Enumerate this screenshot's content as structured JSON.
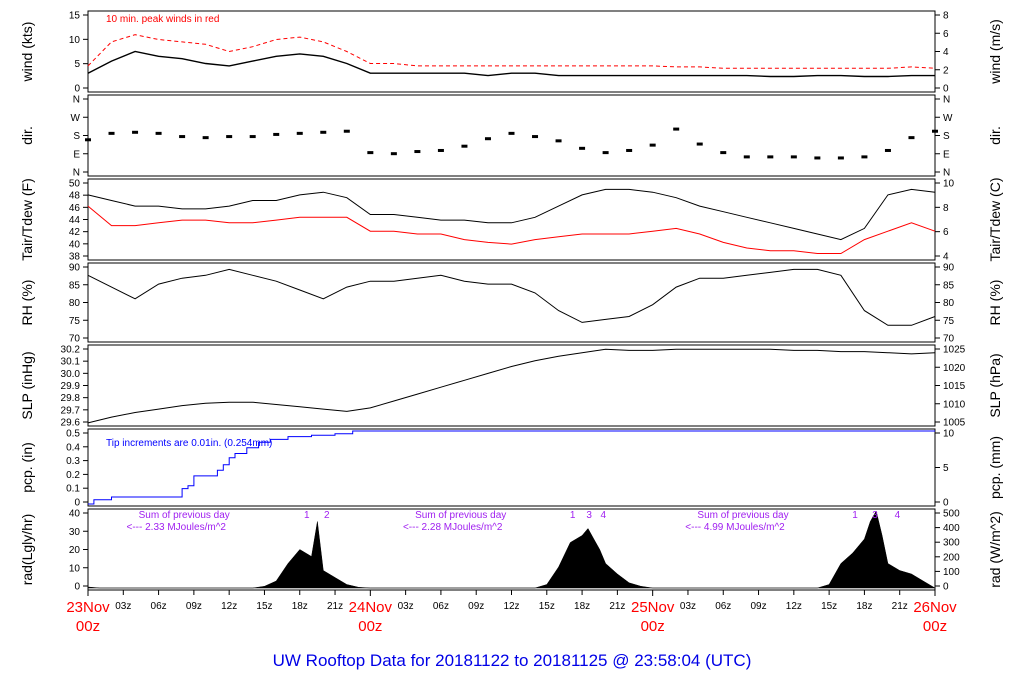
{
  "title": "UW Rooftop Data for 20181122  to  20181125 @ 23:58:04  (UTC)",
  "x_axis": {
    "hour_ticks": [
      "03z",
      "06z",
      "09z",
      "12z",
      "15z",
      "18z",
      "21z"
    ],
    "days": [
      {
        "label": "23Nov",
        "sub": "00z"
      },
      {
        "label": "24Nov",
        "sub": "00z"
      },
      {
        "label": "25Nov",
        "sub": "00z"
      },
      {
        "label": "26Nov",
        "sub": "00z"
      }
    ]
  },
  "colors": {
    "primary": "#000000",
    "gust": "#ff0000",
    "dew": "#ff0000",
    "precip": "#0000ff",
    "annotation": "#a020f0",
    "title": "#0000e6"
  },
  "chart_data": [
    {
      "type": "line",
      "id": "wind",
      "ylabel_left": "wind (kts)",
      "ylabel_right": "wind (m/s)",
      "yticks_left": [
        "0",
        "5",
        "10",
        "15"
      ],
      "yticks_right": [
        "0",
        "2",
        "4",
        "6",
        "8"
      ],
      "ylim": [
        0,
        16
      ],
      "annotation": "10 min. peak winds in red",
      "x_hours": [
        0,
        2,
        4,
        6,
        8,
        10,
        12,
        14,
        16,
        18,
        20,
        22,
        24,
        26,
        28,
        30,
        32,
        34,
        36,
        38,
        40,
        42,
        44,
        46,
        48,
        50,
        52,
        54,
        56,
        58,
        60,
        62,
        64,
        66,
        68,
        70,
        72
      ],
      "series": [
        {
          "role": "wind",
          "values": [
            3.5,
            6,
            8,
            7,
            6.5,
            5.5,
            5,
            6,
            7,
            7.5,
            7,
            5.5,
            3.5,
            3.5,
            3.5,
            3.5,
            3.5,
            3,
            3.5,
            3.5,
            3,
            3,
            3,
            3,
            3,
            3,
            3,
            3,
            3,
            2.8,
            2.8,
            3,
            3,
            2.8,
            2.8,
            3,
            3
          ]
        },
        {
          "role": "gust",
          "values": [
            5,
            10,
            11.5,
            10.5,
            10,
            9.5,
            8,
            9,
            10.5,
            11,
            10,
            8,
            5.5,
            5.5,
            5,
            5,
            5,
            5,
            5,
            5,
            5,
            5,
            5,
            5,
            5,
            4.8,
            4.8,
            4.5,
            4.5,
            4.5,
            4.5,
            4.5,
            4.5,
            4.5,
            4.5,
            4.8,
            4.5
          ]
        }
      ]
    },
    {
      "type": "scatter",
      "id": "dir",
      "ylabel_left": "dir.",
      "ylabel_right": "dir.",
      "yticks_left": [
        "N",
        "E",
        "S",
        "W",
        "N"
      ],
      "yticks_right": [
        "N",
        "E",
        "S",
        "W",
        "N"
      ],
      "ylim": [
        0,
        360
      ],
      "x_hours": [
        0,
        2,
        4,
        6,
        8,
        10,
        12,
        14,
        16,
        18,
        20,
        22,
        24,
        26,
        28,
        30,
        32,
        34,
        36,
        38,
        40,
        42,
        44,
        46,
        48,
        50,
        52,
        54,
        56,
        58,
        60,
        62,
        64,
        66,
        68,
        70,
        72
      ],
      "values": [
        160,
        190,
        195,
        190,
        175,
        170,
        175,
        175,
        185,
        190,
        195,
        200,
        100,
        95,
        105,
        110,
        130,
        165,
        190,
        175,
        155,
        120,
        100,
        110,
        135,
        210,
        140,
        100,
        80,
        80,
        80,
        75,
        75,
        80,
        110,
        170,
        200
      ]
    },
    {
      "type": "line",
      "id": "temp",
      "ylabel_left": "Tair/Tdew (F)",
      "ylabel_right": "Tair/Tdew (C)",
      "yticks_left": [
        "38",
        "40",
        "42",
        "44",
        "46",
        "48",
        "50"
      ],
      "yticks_right": [
        "4",
        "6",
        "8",
        "10"
      ],
      "ylim": [
        36.7,
        50.5
      ],
      "x_hours": [
        0,
        2,
        4,
        6,
        8,
        10,
        12,
        14,
        16,
        18,
        20,
        22,
        24,
        26,
        28,
        30,
        32,
        34,
        36,
        38,
        40,
        42,
        44,
        46,
        48,
        50,
        52,
        54,
        56,
        58,
        60,
        62,
        64,
        66,
        68,
        70,
        72
      ],
      "series": [
        {
          "role": "Tair",
          "values": [
            48,
            47,
            46,
            46,
            45.5,
            45.5,
            46,
            47,
            47,
            48,
            48.5,
            47.5,
            44.5,
            44.5,
            44,
            43.5,
            43.5,
            43,
            43,
            44,
            46,
            48,
            49,
            49,
            48.5,
            47.5,
            46,
            45,
            44,
            43,
            42,
            41,
            40,
            42,
            48,
            49,
            48.5
          ]
        },
        {
          "role": "Tdew",
          "values": [
            46,
            42.5,
            42.5,
            43,
            43.5,
            43.5,
            43,
            43,
            43.5,
            44,
            44,
            44,
            41.5,
            41.5,
            41,
            41,
            40,
            39.5,
            39.2,
            40,
            40.5,
            41,
            41,
            41,
            41.5,
            42,
            41,
            39.5,
            38.5,
            38,
            38,
            37.5,
            37.5,
            40,
            41.5,
            43,
            41.5
          ]
        }
      ]
    },
    {
      "type": "line",
      "id": "rh",
      "ylabel_left": "RH (%)",
      "ylabel_right": "RH (%)",
      "yticks_left": [
        "70",
        "75",
        "80",
        "85",
        "90"
      ],
      "yticks_right": [
        "70",
        "75",
        "80",
        "85",
        "90"
      ],
      "ylim": [
        68,
        93.5
      ],
      "x_hours": [
        0,
        2,
        4,
        6,
        8,
        10,
        12,
        14,
        16,
        18,
        20,
        22,
        24,
        26,
        28,
        30,
        32,
        34,
        36,
        38,
        40,
        42,
        44,
        46,
        48,
        50,
        52,
        54,
        56,
        58,
        60,
        62,
        64,
        66,
        68,
        70,
        72
      ],
      "values": [
        90,
        86,
        82,
        87,
        89,
        90,
        92,
        90,
        88,
        85,
        82,
        86,
        88,
        88,
        89,
        90,
        88,
        87,
        87,
        84,
        78,
        74,
        75,
        76,
        80,
        86,
        89,
        89,
        90,
        91,
        92,
        92,
        90,
        78,
        73,
        73,
        76
      ]
    },
    {
      "type": "line",
      "id": "slp",
      "ylabel_left": "SLP (inHg)",
      "ylabel_right": "SLP (hPa)",
      "yticks_left": [
        "29.6",
        "29.7",
        "29.8",
        "29.9",
        "30.0",
        "30.1",
        "30.2"
      ],
      "yticks_right": [
        "1005",
        "1010",
        "1015",
        "1020",
        "1025"
      ],
      "ylim": [
        29.59,
        30.26
      ],
      "x_hours": [
        0,
        2,
        4,
        6,
        8,
        10,
        12,
        14,
        16,
        18,
        20,
        22,
        24,
        26,
        28,
        30,
        32,
        34,
        36,
        38,
        40,
        42,
        44,
        46,
        48,
        50,
        52,
        54,
        56,
        58,
        60,
        62,
        64,
        66,
        68,
        70,
        72
      ],
      "values": [
        29.6,
        29.65,
        29.69,
        29.72,
        29.75,
        29.77,
        29.78,
        29.78,
        29.76,
        29.74,
        29.72,
        29.7,
        29.73,
        29.79,
        29.85,
        29.91,
        29.97,
        30.03,
        30.09,
        30.14,
        30.18,
        30.21,
        30.24,
        30.23,
        30.23,
        30.24,
        30.24,
        30.24,
        30.24,
        30.24,
        30.23,
        30.23,
        30.22,
        30.22,
        30.21,
        30.2,
        30.21
      ]
    },
    {
      "type": "line",
      "id": "pcp",
      "ylabel_left": "pcp. (in)",
      "ylabel_right": "pcp. (mm)",
      "yticks_left": [
        "0",
        "0.1",
        "0.2",
        "0.3",
        "0.4",
        "0.5"
      ],
      "yticks_right": [
        "0",
        "5",
        "10"
      ],
      "ylim": [
        0,
        0.52
      ],
      "annotation": "Tip increments are 0.01in. (0.254mm)",
      "x_hours": [
        0,
        0.5,
        2,
        7.5,
        8,
        8.5,
        9,
        10.5,
        11,
        11.5,
        12,
        12.5,
        13.5,
        14.5,
        15.5,
        17,
        19,
        21,
        22.5,
        24,
        72
      ],
      "values": [
        0,
        0.03,
        0.05,
        0.05,
        0.11,
        0.13,
        0.2,
        0.2,
        0.24,
        0.28,
        0.33,
        0.36,
        0.4,
        0.44,
        0.46,
        0.48,
        0.49,
        0.5,
        0.52,
        0.52,
        0.52
      ]
    },
    {
      "type": "area",
      "id": "rad",
      "ylabel_left": "rad(Lgly/hr)",
      "ylabel_right": "rad (W/m^2)",
      "yticks_left": [
        "0",
        "10",
        "20",
        "30",
        "40"
      ],
      "yticks_right": [
        "0",
        "100",
        "200",
        "300",
        "400",
        "500"
      ],
      "ylim": [
        0,
        44
      ],
      "x_hours": [
        0,
        1,
        14,
        15,
        16,
        17,
        18,
        19,
        19.5,
        20,
        21,
        22,
        23,
        24,
        38,
        39,
        40,
        41,
        42,
        42.5,
        43,
        43.5,
        44,
        45,
        46,
        47,
        48,
        62,
        63,
        64,
        65,
        66,
        66.5,
        67,
        67.5,
        68,
        69,
        70,
        71,
        72
      ],
      "values": [
        0.6,
        0,
        0,
        1,
        4,
        14,
        22,
        18,
        38,
        10,
        6,
        2,
        0.4,
        0,
        0,
        2,
        12,
        26,
        30,
        34,
        28,
        22,
        14,
        8,
        3,
        1,
        0,
        0,
        2,
        14,
        20,
        28,
        38,
        44,
        30,
        14,
        10,
        8,
        4,
        0
      ],
      "markers": [
        {
          "text": "1",
          "x_hour": 18.6
        },
        {
          "text": "2",
          "x_hour": 20.3
        },
        {
          "text": "1",
          "x_hour": 41.2
        },
        {
          "text": "3",
          "x_hour": 42.6
        },
        {
          "text": "4",
          "x_hour": 43.8
        },
        {
          "text": "1",
          "x_hour": 65.2
        },
        {
          "text": "3",
          "x_hour": 66.9
        },
        {
          "text": "4",
          "x_hour": 68.8
        }
      ],
      "notes": [
        {
          "line1": "Sum of previous day",
          "line2": "<--- 2.33 MJoules/m^2",
          "x_hour": 7.5
        },
        {
          "line1": "Sum of previous day",
          "line2": "<--- 2.28 MJoules/m^2",
          "x_hour": 31
        },
        {
          "line1": "Sum of previous day",
          "line2": "<--- 4.99 MJoules/m^2",
          "x_hour": 55
        }
      ]
    }
  ]
}
